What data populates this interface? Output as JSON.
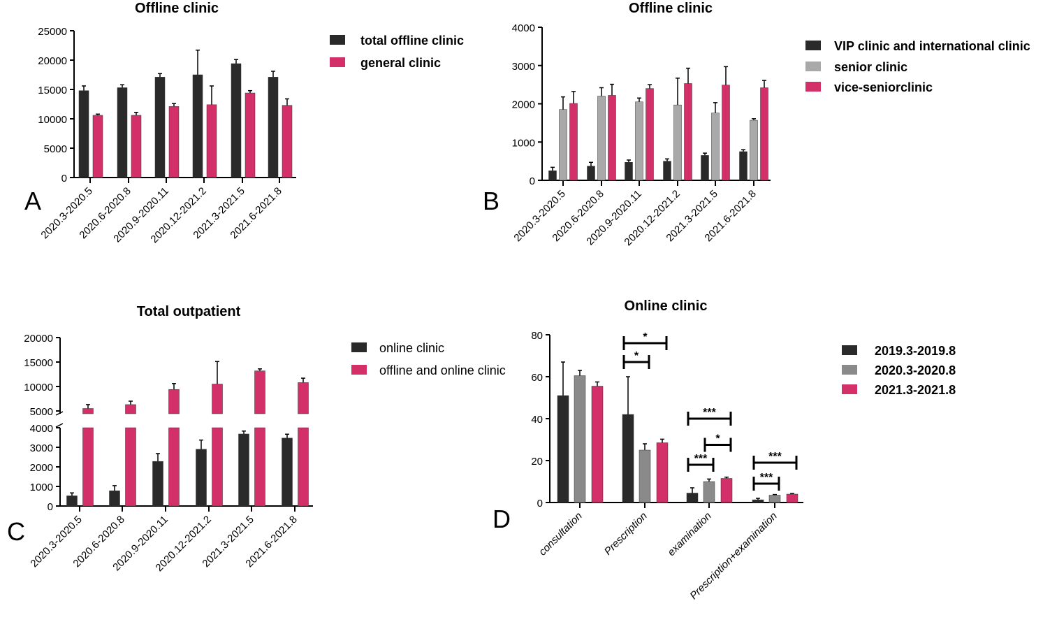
{
  "colors": {
    "black": "#2a2a2a",
    "pink": "#d3306a",
    "lightgray": "#a9a9a9",
    "gray": "#8a8a8a"
  },
  "chart_data": [
    {
      "panel": "A",
      "type": "bar",
      "title": "Offline clinic",
      "categories": [
        "2020.3-2020.5",
        "2020.6-2020.8",
        "2020.9-2020.11",
        "2020.12-2021.2",
        "2021.3-2021.5",
        "2021.6-2021.8"
      ],
      "yticks": [
        "0",
        "5000",
        "10000",
        "15000",
        "20000",
        "25000"
      ],
      "ylim": [
        0,
        25000
      ],
      "legend_bold": true,
      "series": [
        {
          "name": "total offline clinic",
          "color": "black",
          "values": [
            14800,
            15300,
            17100,
            17500,
            19400,
            17100
          ],
          "errors": [
            800,
            500,
            600,
            4200,
            700,
            1000
          ]
        },
        {
          "name": "general clinic",
          "color": "pink",
          "values": [
            10600,
            10600,
            12100,
            12400,
            14400,
            12300
          ],
          "errors": [
            200,
            500,
            500,
            3200,
            400,
            1100
          ]
        }
      ]
    },
    {
      "panel": "B",
      "type": "bar",
      "title": "Offline clinic",
      "categories": [
        "2020.3-2020.5",
        "2020.6-2020.8",
        "2020.9-2020.11",
        "2020.12-2021.2",
        "2021.3-2021.5",
        "2021.6-2021.8"
      ],
      "yticks": [
        "0",
        "1000",
        "2000",
        "3000",
        "4000"
      ],
      "ylim": [
        0,
        4000
      ],
      "legend_bold": true,
      "series": [
        {
          "name": "VIP clinic and international clinic",
          "color": "black",
          "values": [
            250,
            370,
            470,
            500,
            650,
            750
          ],
          "errors": [
            90,
            100,
            60,
            60,
            60,
            50
          ]
        },
        {
          "name": "senior clinic",
          "color": "lightgray",
          "values": [
            1850,
            2200,
            2050,
            1970,
            1760,
            1570
          ],
          "errors": [
            330,
            220,
            100,
            700,
            270,
            40
          ]
        },
        {
          "name": "vice-seniorclinic",
          "color": "pink",
          "values": [
            2010,
            2220,
            2400,
            2530,
            2490,
            2420
          ],
          "errors": [
            310,
            290,
            100,
            400,
            480,
            190
          ]
        }
      ]
    },
    {
      "panel": "C",
      "type": "bar",
      "title": "Total outpatient",
      "categories": [
        "2020.3-2020.5",
        "2020.6-2020.8",
        "2020.9-2020.11",
        "2020.12-2021.2",
        "2021.3-2021.5",
        "2021.6-2021.8"
      ],
      "yticks_lower": [
        "0",
        "1000",
        "2000",
        "3000",
        "4000"
      ],
      "yticks_upper": [
        "5000",
        "10000",
        "15000",
        "20000"
      ],
      "axis_break": [
        4000,
        5000
      ],
      "ylim": [
        0,
        20000
      ],
      "legend_bold": false,
      "series": [
        {
          "name": "online clinic",
          "color": "black",
          "values": [
            520,
            780,
            2280,
            2900,
            3680,
            3470
          ],
          "errors": [
            150,
            260,
            400,
            470,
            150,
            200
          ]
        },
        {
          "name": "offline and online clinic",
          "color": "pink",
          "values": [
            5500,
            6300,
            9400,
            10500,
            13200,
            10800
          ],
          "errors": [
            800,
            700,
            1200,
            4600,
            400,
            900
          ]
        }
      ]
    },
    {
      "panel": "D",
      "type": "bar",
      "title": "Online clinic",
      "categories": [
        "consultation",
        "Prescription",
        "examination",
        "Prescription+examination"
      ],
      "yticks": [
        "0",
        "20",
        "40",
        "60",
        "80"
      ],
      "ylim": [
        0,
        80
      ],
      "legend_bold": true,
      "series": [
        {
          "name": "2019.3-2019.8",
          "color": "black",
          "values": [
            51,
            42,
            4.5,
            1.3
          ],
          "errors": [
            16,
            18,
            2.5,
            0.7
          ]
        },
        {
          "name": "2020.3-2020.8",
          "color": "gray",
          "values": [
            60.5,
            25,
            10,
            3.5
          ],
          "errors": [
            2.5,
            3,
            1.2,
            0.3
          ]
        },
        {
          "name": "2021.3-2021.8",
          "color": "pink",
          "values": [
            55.5,
            28.5,
            11.5,
            4
          ],
          "errors": [
            2,
            1.7,
            0.6,
            0.3
          ]
        }
      ],
      "significance": [
        {
          "category": 1,
          "from": 0,
          "to": 2,
          "level": 76,
          "label": "*"
        },
        {
          "category": 1,
          "from": 0,
          "to": 1,
          "level": 67,
          "label": "*"
        },
        {
          "category": 2,
          "from": 0,
          "to": 2,
          "level": 40,
          "label": "***"
        },
        {
          "category": 2,
          "from": 1,
          "to": 2,
          "level": 27.5,
          "label": "*"
        },
        {
          "category": 2,
          "from": 0,
          "to": 1,
          "level": 18,
          "label": "***"
        },
        {
          "category": 3,
          "from": 0,
          "to": 2,
          "level": 19,
          "label": "***"
        },
        {
          "category": 3,
          "from": 0,
          "to": 1,
          "level": 9,
          "label": "***"
        }
      ]
    }
  ]
}
